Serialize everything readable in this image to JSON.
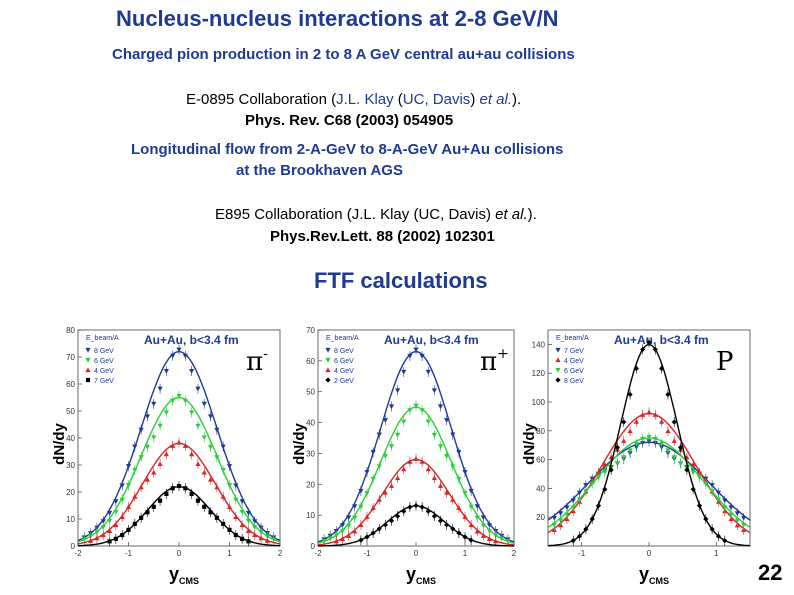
{
  "slide": {
    "title": "Nucleus-nucleus interactions at 2-8 GeV/N",
    "subtitle": "Charged pion production in 2 to 8 A GeV central au+au collisions",
    "cite1_pre": "E-0895 Collaboration (",
    "cite1_author": "J.L. Klay",
    "cite1_mid1": " (",
    "cite1_inst": "UC, Davis",
    "cite1_mid2": ") ",
    "cite1_etal": "et al.",
    "cite1_post": ").",
    "cite1_journal": "Phys. Rev. C68 (2003) 054905",
    "cite2_line1": "Longitudinal flow from 2-A-GeV to 8-A-GeV Au+Au collisions",
    "cite2_line2": "at the Brookhaven AGS",
    "cite3_pre": "E895 Collaboration (J.L. Klay (UC, Davis) ",
    "cite3_etal": "et al.",
    "cite3_post": ").",
    "cite3_journal": "Phys.Rev.Lett. 88 (2002) 102301",
    "ftf_heading": "FTF calculations",
    "page_number": "22"
  },
  "chart_data": [
    {
      "type": "scatter",
      "panel": "pi-minus",
      "title": "Au+Au, b<3.4 fm",
      "particle_symbol": "π",
      "particle_sup": "-",
      "ylabel": "dN/dy",
      "xlabel_main": "y",
      "xlabel_sub": "CMS",
      "legend_header": "E_beam/A",
      "legend_placement": "top-left",
      "xlim": [
        -2,
        2
      ],
      "ylim": [
        0,
        80
      ],
      "xticks": [
        -2,
        -1,
        0,
        1,
        2
      ],
      "yticks": [
        0,
        10,
        20,
        30,
        40,
        50,
        60,
        70,
        80
      ],
      "series": [
        {
          "name": "8 GeV",
          "color": "#1f3a93",
          "marker": "triangle-down",
          "peak": 72,
          "width": 0.75
        },
        {
          "name": "6 GeV",
          "color": "#2ecc40",
          "marker": "triangle-down",
          "peak": 55,
          "width": 0.75
        },
        {
          "name": "4 GeV",
          "color": "#d62728",
          "marker": "triangle-up",
          "peak": 38,
          "width": 0.72
        },
        {
          "name": "7 GeV",
          "color": "#000000",
          "marker": "square",
          "peak": 22,
          "width": 0.62
        }
      ]
    },
    {
      "type": "scatter",
      "panel": "pi-plus",
      "title": "Au+Au, b<3.4 fm",
      "particle_symbol": "π",
      "particle_sup": "+",
      "ylabel": "dN/dy",
      "xlabel_main": "y",
      "xlabel_sub": "CMS",
      "legend_header": "E_beam/A",
      "legend_placement": "top-left",
      "xlim": [
        -2,
        2
      ],
      "ylim": [
        0,
        70
      ],
      "xticks": [
        -2,
        -1,
        0,
        1,
        2
      ],
      "yticks": [
        0,
        10,
        20,
        30,
        40,
        50,
        60,
        70
      ],
      "series": [
        {
          "name": "8 GeV",
          "color": "#1f3a93",
          "marker": "triangle-down",
          "peak": 63,
          "width": 0.72
        },
        {
          "name": "6 GeV",
          "color": "#2ecc40",
          "marker": "triangle-down",
          "peak": 45,
          "width": 0.72
        },
        {
          "name": "4 GeV",
          "color": "#d62728",
          "marker": "triangle-up",
          "peak": 28,
          "width": 0.68
        },
        {
          "name": "2 GeV",
          "color": "#000000",
          "marker": "diamond",
          "peak": 13,
          "width": 0.58
        }
      ]
    },
    {
      "type": "scatter",
      "panel": "proton",
      "title": "Au+Au, b<3.4 fm",
      "particle_symbol": "P",
      "particle_sup": "",
      "ylabel": "dN/dy",
      "xlabel_main": "y",
      "xlabel_sub": "CMS",
      "legend_header": "E_beam/A",
      "legend_placement": "top-left",
      "xlim": [
        -1.5,
        1.5
      ],
      "ylim": [
        0,
        150
      ],
      "xticks": [
        -1,
        0,
        1
      ],
      "yticks": [
        20,
        40,
        60,
        80,
        100,
        120,
        140
      ],
      "series": [
        {
          "name": "7 GeV",
          "color": "#1f3a93",
          "marker": "triangle-down",
          "peak": 72,
          "width": 0.9
        },
        {
          "name": "4 GeV",
          "color": "#d62728",
          "marker": "triangle-up",
          "peak": 92,
          "width": 0.7
        },
        {
          "name": "6 GeV",
          "color": "#2ecc40",
          "marker": "triangle-down",
          "peak": 75,
          "width": 0.8
        },
        {
          "name": "8 GeV",
          "color": "#000000",
          "marker": "diamond",
          "peak": 140,
          "width": 0.42
        }
      ]
    }
  ]
}
